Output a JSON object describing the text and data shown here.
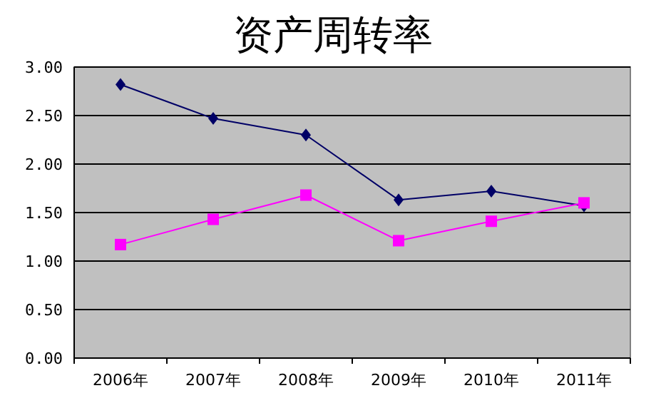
{
  "chart_data": {
    "type": "line",
    "title": "资产周转率",
    "categories": [
      "2006年",
      "2007年",
      "2008年",
      "2009年",
      "2010年",
      "2011年"
    ],
    "series": [
      {
        "color": "#000066",
        "marker": "diamond",
        "values": [
          2.82,
          2.47,
          2.3,
          1.63,
          1.72,
          1.57
        ]
      },
      {
        "color": "#ff00ff",
        "marker": "square",
        "values": [
          1.17,
          1.43,
          1.68,
          1.21,
          1.41,
          1.6
        ]
      }
    ],
    "ylim": [
      0,
      3
    ],
    "yticks": [
      {
        "value": 0,
        "label": "0.00"
      },
      {
        "value": 0.5,
        "label": "0.50"
      },
      {
        "value": 1,
        "label": "1.00"
      },
      {
        "value": 1.5,
        "label": "1.50"
      },
      {
        "value": 2,
        "label": "2.00"
      },
      {
        "value": 2.5,
        "label": "2.50"
      },
      {
        "value": 3,
        "label": "3.00"
      }
    ],
    "grid": "y"
  }
}
